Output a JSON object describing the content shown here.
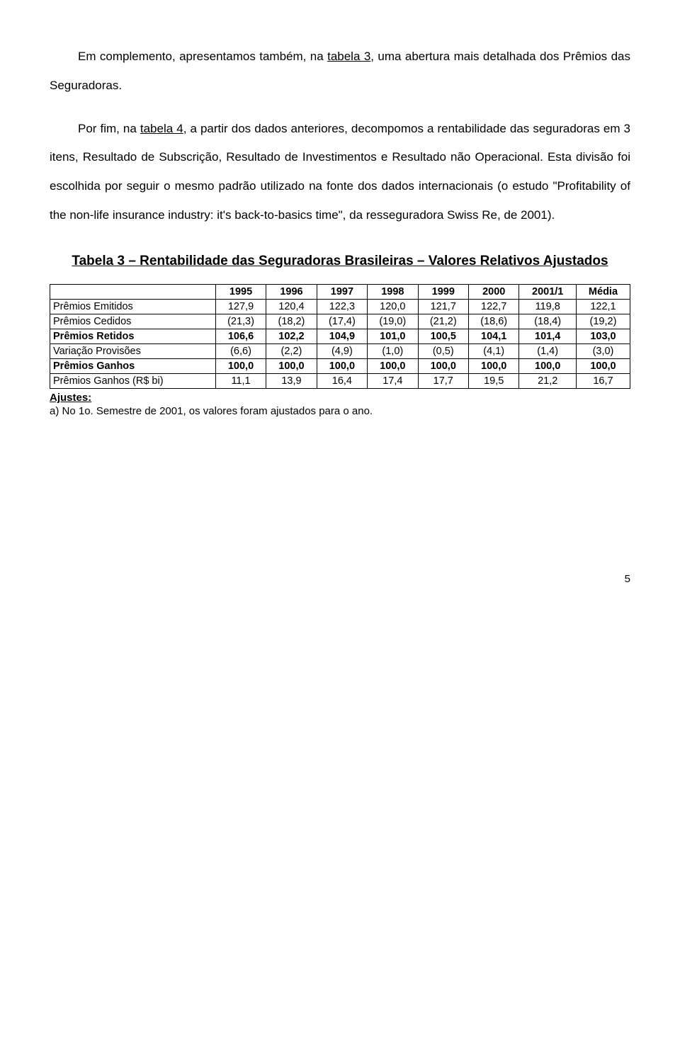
{
  "paragraphs": {
    "p1_a": "Em complemento, apresentamos também, na ",
    "p1_u": "tabela 3",
    "p1_b": ", uma abertura mais detalhada dos Prêmios das Seguradoras.",
    "p2_a": "Por fim, na ",
    "p2_u": "tabela 4",
    "p2_b": ", a partir dos dados anteriores, decompomos a rentabilidade das seguradoras em 3 itens, Resultado de Subscrição, Resultado de Investimentos e Resultado não Operacional. Esta divisão foi escolhida por seguir o mesmo padrão utilizado na fonte dos dados internacionais (o estudo \"Profitability of the non-life insurance industry: it's back-to-basics time\", da resseguradora Swiss Re, de 2001)."
  },
  "table_title": "Tabela 3 – Rentabilidade das Seguradoras Brasileiras – Valores Relativos Ajustados",
  "table": {
    "columns": [
      "",
      "1995",
      "1996",
      "1997",
      "1998",
      "1999",
      "2000",
      "2001/1",
      "Média"
    ],
    "rows": [
      {
        "label": "Prêmios Emitidos",
        "bold": false,
        "cells": [
          "127,9",
          "120,4",
          "122,3",
          "120,0",
          "121,7",
          "122,7",
          "119,8",
          "122,1"
        ]
      },
      {
        "label": "Prêmios Cedidos",
        "bold": false,
        "cells": [
          "(21,3)",
          "(18,2)",
          "(17,4)",
          "(19,0)",
          "(21,2)",
          "(18,6)",
          "(18,4)",
          "(19,2)"
        ]
      },
      {
        "label": "Prêmios Retidos",
        "bold": true,
        "cells": [
          "106,6",
          "102,2",
          "104,9",
          "101,0",
          "100,5",
          "104,1",
          "101,4",
          "103,0"
        ]
      },
      {
        "label": "Variação Provisões",
        "bold": false,
        "cells": [
          "(6,6)",
          "(2,2)",
          "(4,9)",
          "(1,0)",
          "(0,5)",
          "(4,1)",
          "(1,4)",
          "(3,0)"
        ]
      },
      {
        "label": "Prêmios Ganhos",
        "bold": true,
        "cells": [
          "100,0",
          "100,0",
          "100,0",
          "100,0",
          "100,0",
          "100,0",
          "100,0",
          "100,0"
        ]
      },
      {
        "label": "Prêmios Ganhos (R$ bi)",
        "bold": false,
        "cells": [
          "11,1",
          "13,9",
          "16,4",
          "17,4",
          "17,7",
          "19,5",
          "21,2",
          "16,7"
        ]
      }
    ]
  },
  "ajustes_label": "Ajustes:",
  "ajustes_note": "a) No 1o. Semestre de 2001, os valores foram ajustados para o ano.",
  "page_number": "5"
}
